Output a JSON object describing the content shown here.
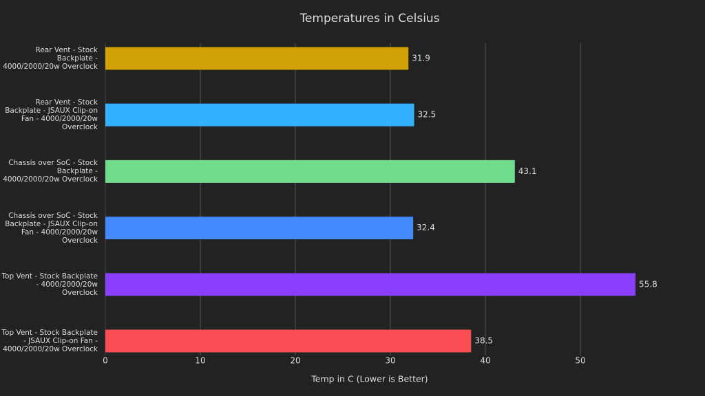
{
  "chart_data": {
    "type": "barh",
    "title": "Temperatures in Celsius",
    "x_label": "Temp in C (Lower is Better)",
    "categories": [
      "Rear Vent - Stock Backplate - 4000/2000/20w Overclock",
      "Rear Vent - Stock Backplate - JSAUX Clip-on Fan - 4000/2000/20w Overclock",
      "Chassis over SoC - Stock Backplate - 4000/2000/20w Overclock",
      "Chassis over SoC - Stock Backplate - JSAUX Clip-on Fan - 4000/2000/20w Overclock",
      "Top Vent - Stock Backplate - 4000/2000/20w Overclock",
      "Top Vent - Stock Backplate - JSAUX Clip-on Fan - 4000/2000/20w Overclock"
    ],
    "values": [
      31.9,
      32.5,
      43.1,
      32.4,
      55.8,
      38.5
    ],
    "colors": [
      "#d2a106",
      "#33b1ff",
      "#6fdc8c",
      "#4589ff",
      "#8a3ffc",
      "#fa4d56"
    ],
    "xlim": [
      0,
      58.6
    ],
    "xticks": [
      0,
      10,
      20,
      30,
      40,
      50
    ],
    "grid": true
  }
}
